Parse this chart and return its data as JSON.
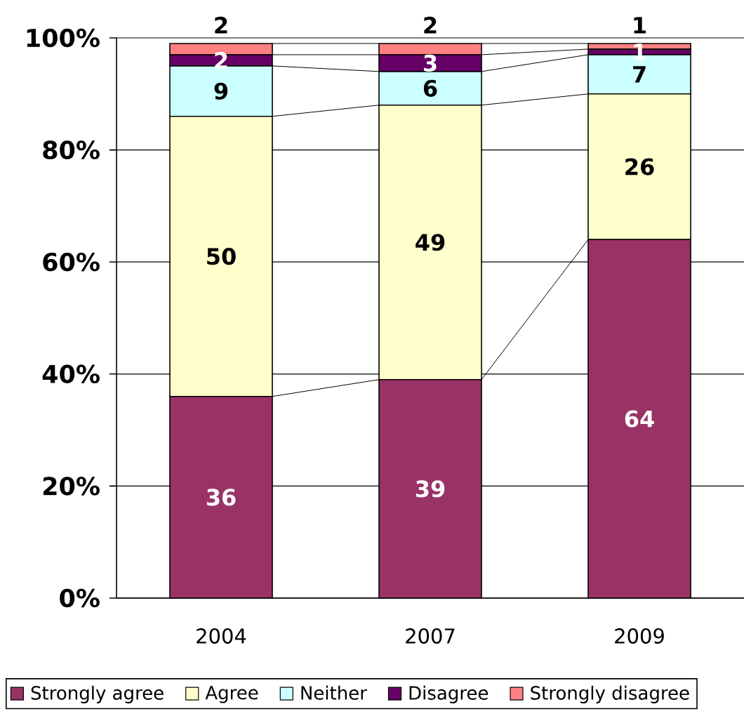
{
  "chart_data": {
    "type": "bar",
    "stacked": true,
    "categories": [
      "2004",
      "2007",
      "2009"
    ],
    "series": [
      {
        "name": "Strongly agree",
        "color": "#993366",
        "values": [
          36,
          39,
          64
        ]
      },
      {
        "name": "Agree",
        "color": "#ffffcc",
        "values": [
          50,
          49,
          26
        ]
      },
      {
        "name": "Neither",
        "color": "#ccffff",
        "values": [
          9,
          6,
          7
        ]
      },
      {
        "name": "Disagree",
        "color": "#660066",
        "values": [
          2,
          3,
          1
        ]
      },
      {
        "name": "Strongly disagree",
        "color": "#ff8080",
        "values": [
          2,
          2,
          1
        ]
      }
    ],
    "ylim": [
      0,
      100
    ],
    "yticks": [
      {
        "value": 0,
        "label": "0%"
      },
      {
        "value": 20,
        "label": "20%"
      },
      {
        "value": 40,
        "label": "40%"
      },
      {
        "value": 60,
        "label": "60%"
      },
      {
        "value": 80,
        "label": "80%"
      },
      {
        "value": 100,
        "label": "100%"
      }
    ],
    "grid": "y",
    "legend": "bottom",
    "data_labels": true
  }
}
